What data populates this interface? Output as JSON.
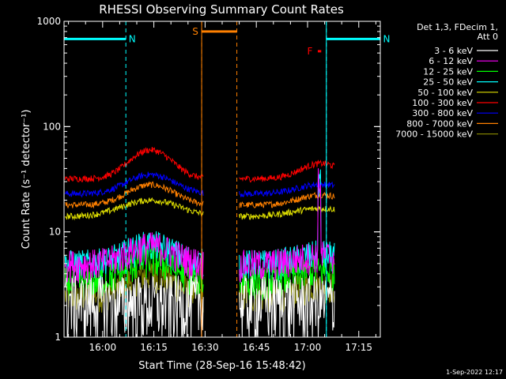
{
  "chart_data": {
    "type": "line",
    "title": "RHESSI Observing Summary Count Rates",
    "xlabel": "Start Time (28-Sep-16 15:48:42)",
    "ylabel": "Count Rate (s⁻¹ detector⁻¹)",
    "x_tick_labels": [
      "16:00",
      "16:15",
      "16:30",
      "16:45",
      "17:00",
      "17:15"
    ],
    "x_tick_minutes": [
      0,
      15,
      30,
      45,
      60,
      75
    ],
    "xlim_minutes": [
      -11.3,
      81.3
    ],
    "y_scale": "log",
    "ylim": [
      1,
      1000
    ],
    "y_tick_labels": [
      "1",
      "10",
      "100",
      "1000"
    ],
    "legend_header": [
      "Det 1,3, FDecim 1,",
      "Att 0"
    ],
    "legend_position": "top-right",
    "series": [
      {
        "name": "3 - 6 keV",
        "color": "#ffffff",
        "shape": "none",
        "base": 1.6
      },
      {
        "name": "6 - 12 keV",
        "color": "#ff00ff",
        "shape": "gauss",
        "base": 5.0,
        "peak": 2.4,
        "center": 14,
        "width": 9
      },
      {
        "name": "12 - 25 keV",
        "color": "#00ff00",
        "shape": "gauss",
        "base": 3.4,
        "peak": 2.0,
        "center": 14,
        "width": 9
      },
      {
        "name": "25 - 50 keV",
        "color": "#00ffff",
        "shape": "gauss",
        "base": 5.0,
        "peak": 2.6,
        "center": 14,
        "width": 9
      },
      {
        "name": "50 - 100 keV",
        "color": "#e0e000",
        "shape": "gauss",
        "base": 14.0,
        "peak": 6.0,
        "center": 14,
        "width": 11
      },
      {
        "name": "100 - 300 keV",
        "color": "#ff0000",
        "shape": "gauss",
        "base": 32.0,
        "peak": 28.0,
        "center": 14,
        "width": 8
      },
      {
        "name": "300 - 800 keV",
        "color": "#0000ff",
        "shape": "gauss",
        "base": 23.0,
        "peak": 12.0,
        "center": 14,
        "width": 9
      },
      {
        "name": "800 - 7000 keV",
        "color": "#ff8000",
        "shape": "gauss",
        "base": 18.0,
        "peak": 10.0,
        "center": 14,
        "width": 9
      },
      {
        "name": "7000 - 15000 keV",
        "color": "#808000",
        "shape": "gauss",
        "base": 2.5,
        "peak": 1.5,
        "center": 14,
        "width": 9
      }
    ],
    "annotations": [
      {
        "label": "N",
        "color": "#00ffff",
        "kind": "night",
        "start_min": -11.3,
        "end_min": 6.8,
        "level": 680
      },
      {
        "label": "N",
        "color": "#00ffff",
        "kind": "night",
        "start_min": 65.5,
        "end_min": 81.3,
        "level": 680
      },
      {
        "label": "S",
        "color": "#ff8000",
        "kind": "saa",
        "start_min": 29.0,
        "end_min": 39.3,
        "level": 800
      },
      {
        "label": "F",
        "color": "#ff0000",
        "kind": "flare",
        "start_min": 63.0,
        "end_min": 64.0,
        "level": 520
      }
    ],
    "data_gap_minutes": [
      29.5,
      40.0
    ],
    "timestamp": "1-Sep-2022 12:17"
  }
}
